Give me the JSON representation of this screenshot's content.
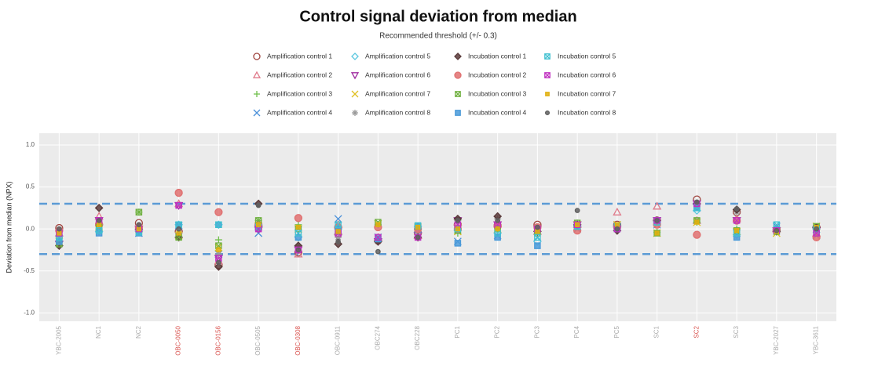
{
  "chart_data": {
    "type": "dot",
    "title": "Control signal deviation from median",
    "subtitle": "Recommended threshold (+/- 0.3)",
    "y_label": "Deviation from median (NPX)",
    "thresholds": [
      0.3,
      -0.3
    ],
    "threshold_color": "#5b9bd5",
    "categories": [
      "YBC-2005",
      "NC1",
      "NC2",
      "OBC-0050",
      "OBC-0156",
      "OBC-0505",
      "OBC-0308",
      "OBC-0911",
      "OBC274",
      "OBC228",
      "PC1",
      "PC2",
      "PC3",
      "PC4",
      "PC5",
      "SC1",
      "SC2",
      "SC3",
      "YBC-2027",
      "YBC-3611"
    ],
    "category_colors": [
      "#aaaaaa",
      "#aaaaaa",
      "#aaaaaa",
      "#d9534f",
      "#d9534f",
      "#aaaaaa",
      "#d9534f",
      "#aaaaaa",
      "#aaaaaa",
      "#aaaaaa",
      "#aaaaaa",
      "#aaaaaa",
      "#aaaaaa",
      "#aaaaaa",
      "#aaaaaa",
      "#aaaaaa",
      "#d9534f",
      "#aaaaaa",
      "#aaaaaa",
      "#aaaaaa"
    ],
    "ylim": [
      -1.1,
      1.14
    ],
    "yticks": [
      {
        "value": -1,
        "label": "-1.0"
      },
      -0.5,
      {
        "value": 0,
        "label": "0.0"
      },
      0.5,
      {
        "value": 1,
        "label": "1.0"
      }
    ],
    "grid": true,
    "series": [
      {
        "name": "Amplification control 1",
        "color": "#a0453f",
        "marker": "circle-open",
        "values": [
          0.01,
          0.05,
          0.07,
          -0.03,
          -0.43,
          0.03,
          -0.28,
          0.02,
          -0.14,
          -0.05,
          0.05,
          0.04,
          0.05,
          0.03,
          0.05,
          0.1,
          0.35,
          0.2,
          -0.02,
          0.02
        ]
      },
      {
        "name": "Amplification control 2",
        "color": "#e07a8a",
        "marker": "triangle-open",
        "values": [
          -0.05,
          0.15,
          0.02,
          0.3,
          -0.38,
          0.05,
          -0.3,
          0.05,
          -0.1,
          -0.08,
          0.08,
          0.06,
          -0.03,
          0.05,
          0.2,
          0.27,
          0.1,
          0.12,
          0,
          -0.05
        ]
      },
      {
        "name": "Amplification control 3",
        "color": "#6fbf4a",
        "marker": "plus",
        "values": [
          -0.1,
          0,
          0.2,
          -0.1,
          -0.13,
          0.1,
          0.05,
          -0.05,
          0.05,
          0.02,
          -0.05,
          0.02,
          -0.02,
          0.06,
          0.04,
          -0.04,
          0.08,
          0,
          -0.03,
          0.02
        ]
      },
      {
        "name": "Amplification control 4",
        "color": "#4a90d9",
        "marker": "cross",
        "values": [
          -0.12,
          0,
          -0.05,
          0.04,
          -0.3,
          -0.05,
          -0.05,
          0.12,
          -0.1,
          0,
          -0.15,
          -0.08,
          -0.1,
          0,
          0.05,
          0.05,
          0.25,
          -0.05,
          0.03,
          -0.08
        ]
      },
      {
        "name": "Amplification control 5",
        "color": "#5cc8e0",
        "marker": "diamond-open",
        "values": [
          -0.15,
          -0.03,
          -0.03,
          0.05,
          0.05,
          0.02,
          -0.1,
          0,
          -0.12,
          0.03,
          -0.02,
          -0.05,
          -0.15,
          0.03,
          0.02,
          0.08,
          0.22,
          -0.07,
          0,
          0
        ]
      },
      {
        "name": "Amplification control 6",
        "color": "#a02ca0",
        "marker": "triangle-down-open",
        "values": [
          -0.18,
          0.1,
          0,
          0.28,
          -0.35,
          0,
          -0.25,
          -0.1,
          -0.15,
          -0.08,
          0.1,
          0.05,
          0,
          0.05,
          0,
          0.1,
          0.3,
          0.1,
          -0.02,
          -0.02
        ]
      },
      {
        "name": "Amplification control 7",
        "color": "#e0c020",
        "marker": "cross",
        "values": [
          -0.15,
          0.02,
          0,
          -0.08,
          -0.22,
          0.04,
          0,
          -0.03,
          0.06,
          0.02,
          -0.03,
          0,
          -0.03,
          0.05,
          0.05,
          -0.05,
          0.08,
          -0.03,
          -0.05,
          0.03
        ]
      },
      {
        "name": "Amplification control 8",
        "color": "#999999",
        "marker": "asterisk",
        "values": [
          -0.1,
          0.08,
          0,
          -0.05,
          -0.3,
          0,
          -0.22,
          -0.1,
          -0.15,
          -0.05,
          0.1,
          0.12,
          0,
          0.07,
          0,
          0.1,
          0.3,
          0.2,
          -0.02,
          0
        ]
      },
      {
        "name": "Incubation control 1",
        "color": "#5a3a3a",
        "marker": "diamond-filled",
        "values": [
          -0.2,
          0.25,
          0,
          -0.1,
          -0.45,
          0.3,
          -0.2,
          -0.18,
          -0.15,
          -0.1,
          0.12,
          0.15,
          -0.03,
          0.05,
          -0.02,
          0.1,
          0.3,
          0.23,
          -0.03,
          0.02
        ]
      },
      {
        "name": "Incubation control 2",
        "color": "#e07070",
        "marker": "circle-filled",
        "values": [
          -0.02,
          0.05,
          0.02,
          0.43,
          0.2,
          0.05,
          0.13,
          0.02,
          0.02,
          0,
          0,
          0.03,
          0.02,
          -0.02,
          0.02,
          0.05,
          -0.07,
          0.1,
          0,
          -0.1
        ]
      },
      {
        "name": "Incubation control 3",
        "color": "#70b040",
        "marker": "square-cross",
        "values": [
          -0.18,
          0.02,
          0.2,
          -0.1,
          -0.2,
          0.1,
          0,
          -0.05,
          0.08,
          0.03,
          -0.02,
          0,
          -0.05,
          0.07,
          0.03,
          -0.05,
          0.1,
          -0.02,
          -0.03,
          0.03
        ]
      },
      {
        "name": "Incubation control 4",
        "color": "#4a9ad9",
        "marker": "square-filled",
        "values": [
          -0.15,
          -0.05,
          -0.05,
          0.05,
          0.05,
          0.02,
          -0.1,
          0,
          -0.12,
          0.03,
          -0.17,
          -0.1,
          -0.2,
          0.03,
          0,
          0.1,
          0.26,
          -0.1,
          0,
          0
        ]
      },
      {
        "name": "Incubation control 5",
        "color": "#40c0d0",
        "marker": "square-cross",
        "values": [
          -0.1,
          -0.02,
          -0.04,
          0.05,
          0.05,
          0.02,
          -0.05,
          0.05,
          -0.1,
          0.04,
          0,
          -0.05,
          -0.1,
          0.03,
          0.03,
          0.08,
          0.25,
          -0.05,
          0.05,
          0
        ]
      },
      {
        "name": "Incubation control 6",
        "color": "#c030c0",
        "marker": "square-cross",
        "values": [
          -0.05,
          0.1,
          0,
          0.28,
          -0.35,
          0,
          -0.25,
          -0.05,
          -0.1,
          -0.1,
          0.05,
          0.05,
          0,
          0.05,
          0,
          0.1,
          0.3,
          0.1,
          -0.02,
          -0.05
        ]
      },
      {
        "name": "Incubation control 7",
        "color": "#e0b010",
        "marker": "square-small",
        "values": [
          -0.05,
          0.05,
          0,
          -0.05,
          -0.25,
          0.05,
          0.02,
          -0.03,
          0.05,
          0.02,
          0,
          0,
          -0.03,
          0.05,
          0.05,
          -0.05,
          0.08,
          -0.02,
          -0.03,
          0.02
        ]
      },
      {
        "name": "Incubation control 8",
        "color": "#606060",
        "marker": "circle-small",
        "values": [
          0,
          0.1,
          0.05,
          0,
          -0.4,
          0.28,
          -0.25,
          -0.15,
          -0.27,
          -0.1,
          0.1,
          0.1,
          0.02,
          0.22,
          0,
          0.1,
          0.32,
          0.24,
          -0.02,
          0
        ]
      }
    ]
  }
}
